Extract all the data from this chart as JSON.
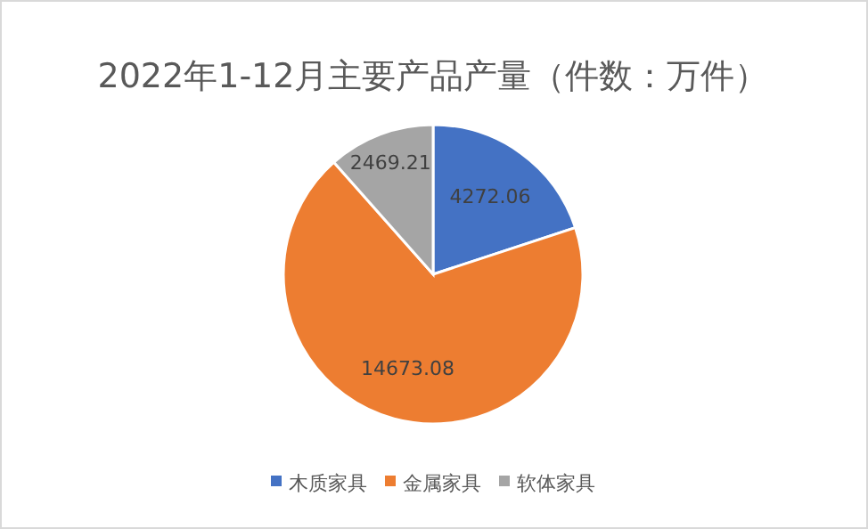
{
  "chart_data": {
    "type": "pie",
    "title": "2022年1-12月主要产品产量（件数：万件）",
    "categories": [
      "木质家具",
      "金属家具",
      "软体家具"
    ],
    "values": [
      4272.06,
      14673.08,
      2469.21
    ],
    "colors": [
      "#4472c4",
      "#ed7d31",
      "#a5a5a5"
    ],
    "data_labels": true,
    "legend": "bottom"
  }
}
